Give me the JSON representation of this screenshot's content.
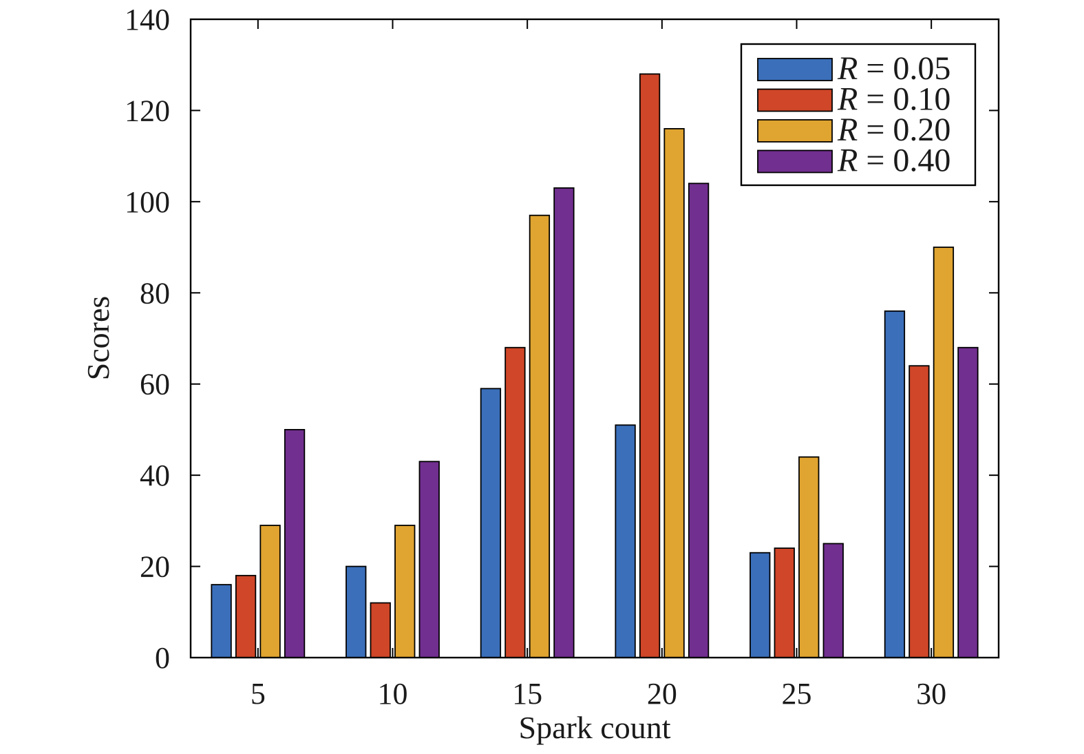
{
  "chart_data": {
    "type": "bar",
    "xlabel": "Spark count",
    "ylabel": "Scores",
    "categories": [
      "5",
      "10",
      "15",
      "20",
      "25",
      "30"
    ],
    "ylim": [
      0,
      140
    ],
    "yticks": [
      "0",
      "20",
      "40",
      "60",
      "80",
      "100",
      "120",
      "140"
    ],
    "grid": false,
    "legend_position": "top-right",
    "series": [
      {
        "name": "R = 0.05",
        "var": "R",
        "value_label": " = 0.05",
        "color": "#3b6fba",
        "values": [
          16,
          20,
          59,
          51,
          23,
          76
        ]
      },
      {
        "name": "R = 0.10",
        "var": "R",
        "value_label": " = 0.10",
        "color": "#cf4628",
        "values": [
          18,
          12,
          68,
          128,
          24,
          64
        ]
      },
      {
        "name": "R = 0.20",
        "var": "R",
        "value_label": " = 0.20",
        "color": "#e0a430",
        "values": [
          29,
          29,
          97,
          116,
          44,
          90
        ]
      },
      {
        "name": "R = 0.40",
        "var": "R",
        "value_label": " = 0.40",
        "color": "#712f8f",
        "values": [
          50,
          43,
          103,
          104,
          25,
          68
        ]
      }
    ]
  }
}
